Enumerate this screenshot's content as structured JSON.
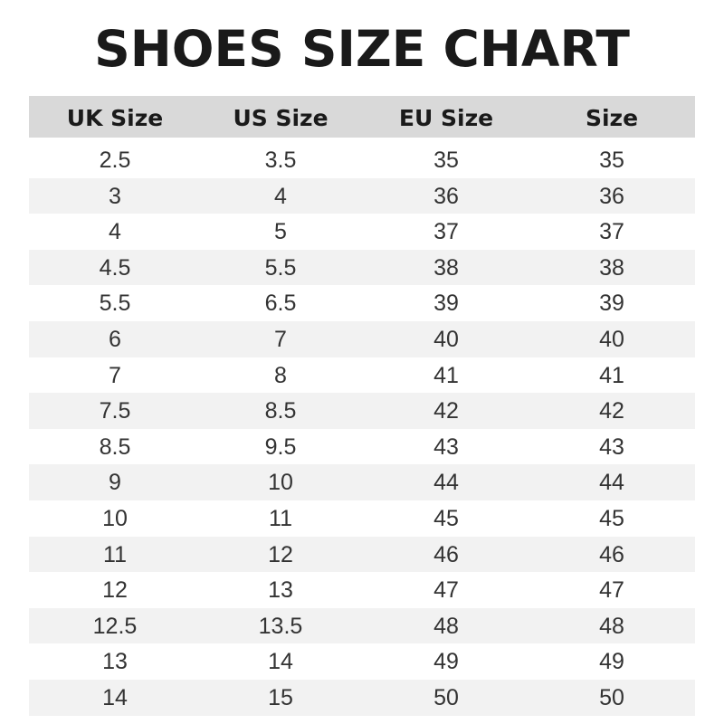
{
  "title": "SHOES SIZE CHART",
  "columns": [
    "UK Size",
    "US Size",
    "EU Size",
    "Size"
  ],
  "rows": [
    [
      "2.5",
      "3.5",
      "35",
      "35"
    ],
    [
      "3",
      "4",
      "36",
      "36"
    ],
    [
      "4",
      "5",
      "37",
      "37"
    ],
    [
      "4.5",
      "5.5",
      "38",
      "38"
    ],
    [
      "5.5",
      "6.5",
      "39",
      "39"
    ],
    [
      "6",
      "7",
      "40",
      "40"
    ],
    [
      "7",
      "8",
      "41",
      "41"
    ],
    [
      "7.5",
      "8.5",
      "42",
      "42"
    ],
    [
      "8.5",
      "9.5",
      "43",
      "43"
    ],
    [
      "9",
      "10",
      "44",
      "44"
    ],
    [
      "10",
      "11",
      "45",
      "45"
    ],
    [
      "11",
      "12",
      "46",
      "46"
    ],
    [
      "12",
      "13",
      "47",
      "47"
    ],
    [
      "12.5",
      "13.5",
      "48",
      "48"
    ],
    [
      "13",
      "14",
      "49",
      "49"
    ],
    [
      "14",
      "15",
      "50",
      "50"
    ]
  ],
  "colors": {
    "header_bg": "#d9d9d9",
    "stripe_bg": "#f2f2f2"
  }
}
